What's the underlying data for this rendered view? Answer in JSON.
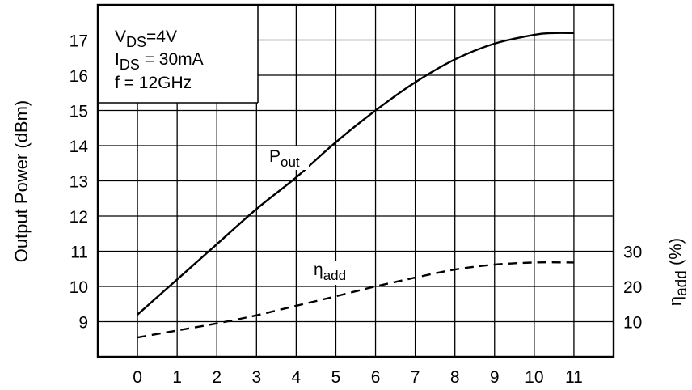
{
  "chart_data": {
    "type": "line",
    "title": "",
    "xlabel": "",
    "ylabel": "Output Power (dBm)",
    "y2label_main": "η",
    "y2label_sub": "add",
    "y2label_tail": " (%)",
    "xlim": [
      -1,
      12
    ],
    "ylim": [
      8,
      18
    ],
    "y2_ticks": [
      10,
      20,
      30
    ],
    "y2_map": [
      [
        10,
        9
      ],
      [
        20,
        10
      ],
      [
        30,
        11
      ]
    ],
    "x_ticks": [
      0,
      1,
      2,
      3,
      4,
      5,
      6,
      7,
      8,
      9,
      10,
      11
    ],
    "y_ticks": [
      9,
      10,
      11,
      12,
      13,
      14,
      15,
      16,
      17
    ],
    "grid": true,
    "annotations": {
      "vds_main": "V",
      "vds_sub": "DS",
      "vds_tail": "=4V",
      "ids_main": "I",
      "ids_sub": "DS",
      "ids_tail": " = 30mA",
      "freq": "f = 12GHz"
    },
    "series": [
      {
        "name_main": "P",
        "name_sub": "out",
        "axis": "left",
        "style": "solid",
        "x": [
          0,
          1,
          2,
          3,
          4,
          5,
          6,
          7,
          8,
          9,
          10,
          10.5,
          11
        ],
        "y": [
          9.2,
          10.2,
          11.2,
          12.2,
          13.1,
          14.1,
          15.0,
          15.8,
          16.45,
          16.9,
          17.15,
          17.2,
          17.2
        ]
      },
      {
        "name_main": "η",
        "name_sub": "add",
        "axis": "right",
        "style": "dashed",
        "x": [
          0,
          1,
          2,
          3,
          4,
          5,
          6,
          7,
          8,
          9,
          10,
          11
        ],
        "y": [
          5.5,
          7.5,
          9.5,
          11.8,
          14.5,
          17.2,
          20.0,
          22.5,
          24.8,
          26.2,
          26.8,
          26.8
        ]
      }
    ]
  }
}
